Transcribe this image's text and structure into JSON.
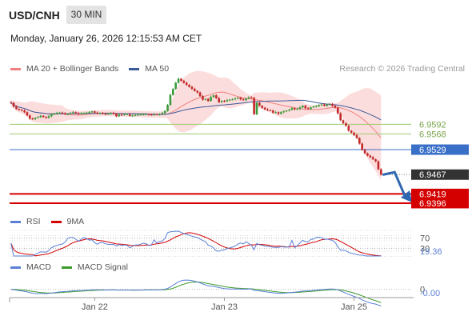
{
  "header": {
    "symbol": "USD/CNH",
    "timeframe": "30 MIN",
    "datetime": "Monday, January 26, 2026 12:15:53 AM CET",
    "credit": "Research © 2026 Trading Central"
  },
  "colors": {
    "up": "#3a9a3a",
    "down": "#c22a2a",
    "ma20": "#f08080",
    "ma50": "#3a5a9a",
    "band": "#fbd5d5",
    "resistance": "#9bc96b",
    "pivot": "#3a6fc8",
    "support": "#d40000",
    "last": "#333333",
    "arrow": "#2f67b0",
    "rsi": "#5b7fd6",
    "rsi_ma": "#d40000",
    "macd": "#5b7fd6",
    "macd_signal": "#3a9a2a"
  },
  "main_legend": [
    {
      "label": "MA 20 + Bollinger Bands",
      "color": "#f08080"
    },
    {
      "label": "MA 50",
      "color": "#3a5a9a"
    }
  ],
  "rsi_legend": [
    {
      "label": "RSI",
      "color": "#5b7fd6"
    },
    {
      "label": "9MA",
      "color": "#d40000"
    }
  ],
  "macd_legend": [
    {
      "label": "MACD",
      "color": "#5b7fd6"
    },
    {
      "label": "MACD Signal",
      "color": "#3a9a2a"
    }
  ],
  "price_tags": [
    {
      "label": "6.9592",
      "value": 6.9592,
      "kind": "resistance"
    },
    {
      "label": "6.9568",
      "value": 6.9568,
      "kind": "resistance"
    },
    {
      "label": "6.9529",
      "value": 6.9529,
      "kind": "pivot"
    },
    {
      "label": "6.9467",
      "value": 6.9467,
      "kind": "last"
    },
    {
      "label": "6.9419",
      "value": 6.9419,
      "kind": "support"
    },
    {
      "label": "6.9396",
      "value": 6.9396,
      "kind": "support"
    }
  ],
  "rsi_tags": [
    {
      "label": "70",
      "value": 70
    },
    {
      "label": "30",
      "value": 30
    },
    {
      "label": "19.36",
      "value": 19.36
    }
  ],
  "macd_tags": [
    {
      "label": "0",
      "value": 0
    },
    {
      "label": "-0.00",
      "value": -0.0008
    }
  ],
  "x_axis": [
    {
      "label": "Jan 22",
      "index": 31
    },
    {
      "label": "Jan 23",
      "index": 79
    },
    {
      "label": "Jan 25",
      "index": 127
    }
  ],
  "chart_data": {
    "type": "candlestick",
    "ylim": [
      6.938,
      6.971
    ],
    "rsi_ylim": [
      0,
      100
    ],
    "macd_ylim": [
      -0.0015,
      0.003
    ],
    "bars": 138,
    "closes": [
      6.9645,
      6.9636,
      6.963,
      6.9628,
      6.9626,
      6.9622,
      6.9614,
      6.9606,
      6.9605,
      6.9608,
      6.961,
      6.9613,
      6.961,
      6.9608,
      6.9612,
      6.9617,
      6.9618,
      6.962,
      6.9621,
      6.9619,
      6.9617,
      6.9618,
      6.962,
      6.9622,
      6.962,
      6.9618,
      6.9619,
      6.962,
      6.9621,
      6.9622,
      6.9624,
      6.9621,
      6.9619,
      6.962,
      6.9618,
      6.9617,
      6.9618,
      6.962,
      6.9618,
      6.9612,
      6.9616,
      6.9615,
      6.9617,
      6.9617,
      6.9613,
      6.9614,
      6.9615,
      6.9616,
      6.9616,
      6.9617,
      6.9617,
      6.9616,
      6.9615,
      6.9617,
      6.9616,
      6.9617,
      6.962,
      6.9625,
      6.964,
      6.9665,
      6.968,
      6.9695,
      6.9705,
      6.97,
      6.9695,
      6.969,
      6.9685,
      6.968,
      6.9675,
      6.9671,
      6.9662,
      6.9653,
      6.9655,
      6.965,
      6.966,
      6.9664,
      6.9657,
      6.9647,
      6.965,
      6.9649,
      6.9652,
      6.9653,
      6.9654,
      6.9656,
      6.9658,
      6.9654,
      6.9652,
      6.9656,
      6.9659,
      6.9658,
      6.9617,
      6.9645,
      6.9638,
      6.9633,
      6.9629,
      6.9627,
      6.9626,
      6.9621,
      6.9622,
      6.9618,
      6.9622,
      6.9624,
      6.9626,
      6.9628,
      6.9632,
      6.9629,
      6.963,
      6.9634,
      6.9638,
      6.9632,
      6.963,
      6.9634,
      6.9636,
      6.9637,
      6.964,
      6.9641,
      6.9638,
      6.9641,
      6.9642,
      6.9638,
      6.9633,
      6.9619,
      6.9602,
      6.9595,
      6.9588,
      6.9576,
      6.9571,
      6.9565,
      6.9558,
      6.9544,
      6.9528,
      6.952,
      6.9514,
      6.951,
      6.9505,
      6.95,
      6.948,
      6.9467
    ]
  }
}
